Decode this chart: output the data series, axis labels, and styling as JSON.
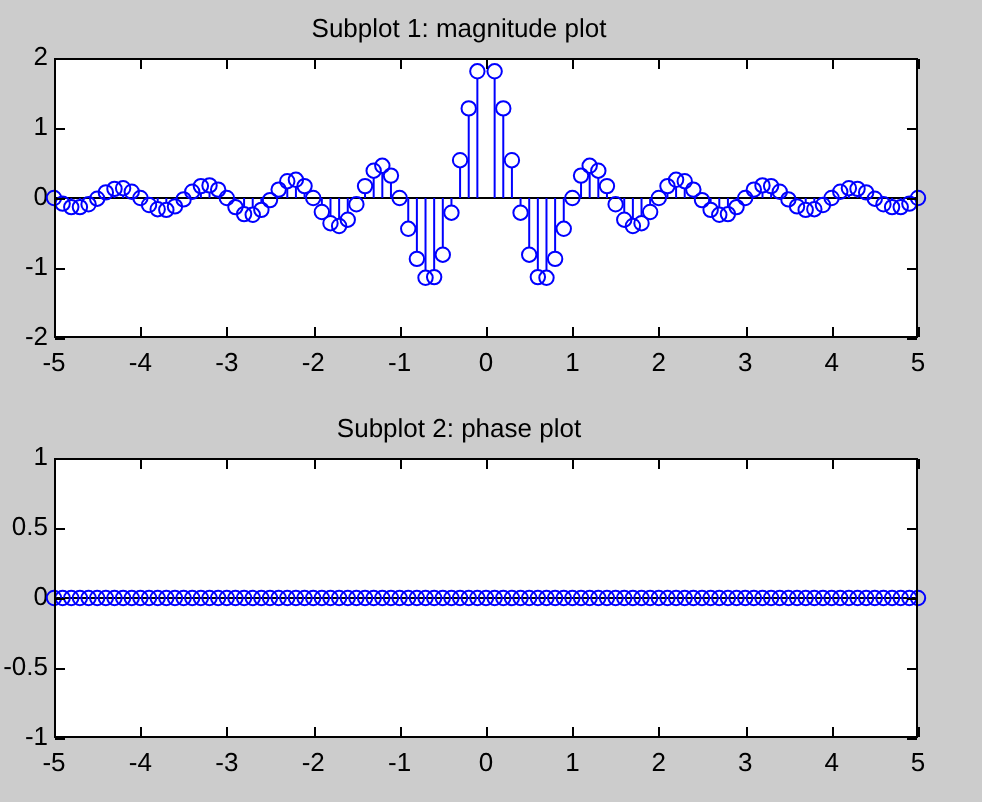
{
  "chart_data": [
    {
      "type": "lollipop",
      "title": "Subplot 1: magnitude plot",
      "color": "#0000ff",
      "marker": "circle",
      "x": [
        -5,
        -4.9,
        -4.8,
        -4.7,
        -4.6,
        -4.5,
        -4.4,
        -4.3,
        -4.2,
        -4.1,
        -4,
        -3.9,
        -3.8,
        -3.7,
        -3.6,
        -3.5,
        -3.4,
        -3.3,
        -3.2,
        -3.1,
        -3,
        -2.9,
        -2.8,
        -2.7,
        -2.6,
        -2.5,
        -2.4,
        -2.3,
        -2.2,
        -2.1,
        -2,
        -1.9,
        -1.8,
        -1.7,
        -1.6,
        -1.5,
        -1.4,
        -1.3,
        -1.2,
        -1.1,
        -1,
        -0.9,
        -0.8,
        -0.7,
        -0.6,
        -0.5,
        -0.4,
        -0.3,
        -0.2,
        -0.1,
        0,
        0.1,
        0.2,
        0.3,
        0.4,
        0.5,
        0.6,
        0.7,
        0.8,
        0.9,
        1,
        1.1,
        1.2,
        1.3,
        1.4,
        1.5,
        1.6,
        1.7,
        1.8,
        1.9,
        2,
        2.1,
        2.2,
        2.3,
        2.4,
        2.5,
        2.6,
        2.7,
        2.8,
        2.9,
        3,
        3.1,
        3.2,
        3.3,
        3.4,
        3.5,
        3.6,
        3.7,
        3.8,
        3.9,
        4,
        4.1,
        4.2,
        4.3,
        4.4,
        4.5,
        4.6,
        4.7,
        4.8,
        4.9,
        5
      ],
      "values": [
        0,
        -0.08,
        -0.13,
        -0.13,
        -0.09,
        -0.01,
        0.08,
        0.13,
        0.14,
        0.09,
        0,
        -0.1,
        -0.16,
        -0.17,
        -0.12,
        -0.02,
        0.09,
        0.17,
        0.18,
        0.12,
        0,
        -0.13,
        -0.23,
        -0.24,
        -0.17,
        -0.03,
        0.12,
        0.24,
        0.26,
        0.17,
        0,
        -0.2,
        -0.36,
        -0.4,
        -0.31,
        -0.09,
        0.17,
        0.39,
        0.46,
        0.32,
        0,
        -0.44,
        -0.87,
        -1.14,
        -1.13,
        -0.81,
        -0.21,
        0.54,
        1.28,
        1.81,
        null,
        1.81,
        1.28,
        0.54,
        -0.21,
        -0.81,
        -1.13,
        -1.14,
        -0.87,
        -0.44,
        0,
        0.32,
        0.46,
        0.39,
        0.17,
        -0.09,
        -0.31,
        -0.4,
        -0.36,
        -0.2,
        0,
        0.17,
        0.26,
        0.24,
        0.12,
        -0.03,
        -0.17,
        -0.24,
        -0.23,
        -0.13,
        0,
        0.12,
        0.18,
        0.17,
        0.09,
        -0.02,
        -0.12,
        -0.17,
        -0.16,
        -0.1,
        0,
        0.09,
        0.14,
        0.13,
        0.08,
        -0.01,
        -0.09,
        -0.13,
        -0.13,
        -0.08,
        0
      ],
      "xlim": [
        -5,
        5
      ],
      "xticks": [
        -5,
        -4,
        -3,
        -2,
        -1,
        0,
        1,
        2,
        3,
        4,
        5
      ],
      "ylim": [
        -2,
        2
      ],
      "yticks": [
        -2,
        -1,
        0,
        1,
        2
      ],
      "ref_lines": [
        {
          "axis": "y",
          "value": 0,
          "color": "#000000"
        }
      ]
    },
    {
      "type": "lollipop",
      "title": "Subplot 2: phase plot",
      "color": "#0000ff",
      "marker": "circle",
      "x": [
        -5,
        -4.9,
        -4.8,
        -4.7,
        -4.6,
        -4.5,
        -4.4,
        -4.3,
        -4.2,
        -4.1,
        -4,
        -3.9,
        -3.8,
        -3.7,
        -3.6,
        -3.5,
        -3.4,
        -3.3,
        -3.2,
        -3.1,
        -3,
        -2.9,
        -2.8,
        -2.7,
        -2.6,
        -2.5,
        -2.4,
        -2.3,
        -2.2,
        -2.1,
        -2,
        -1.9,
        -1.8,
        -1.7,
        -1.6,
        -1.5,
        -1.4,
        -1.3,
        -1.2,
        -1.1,
        -1,
        -0.9,
        -0.8,
        -0.7,
        -0.6,
        -0.5,
        -0.4,
        -0.3,
        -0.2,
        -0.1,
        0,
        0.1,
        0.2,
        0.3,
        0.4,
        0.5,
        0.6,
        0.7,
        0.8,
        0.9,
        1,
        1.1,
        1.2,
        1.3,
        1.4,
        1.5,
        1.6,
        1.7,
        1.8,
        1.9,
        2,
        2.1,
        2.2,
        2.3,
        2.4,
        2.5,
        2.6,
        2.7,
        2.8,
        2.9,
        3,
        3.1,
        3.2,
        3.3,
        3.4,
        3.5,
        3.6,
        3.7,
        3.8,
        3.9,
        4,
        4.1,
        4.2,
        4.3,
        4.4,
        4.5,
        4.6,
        4.7,
        4.8,
        4.9,
        5
      ],
      "values": [
        0,
        0,
        0,
        0,
        0,
        0,
        0,
        0,
        0,
        0,
        0,
        0,
        0,
        0,
        0,
        0,
        0,
        0,
        0,
        0,
        0,
        0,
        0,
        0,
        0,
        0,
        0,
        0,
        0,
        0,
        0,
        0,
        0,
        0,
        0,
        0,
        0,
        0,
        0,
        0,
        0,
        0,
        0,
        0,
        0,
        0,
        0,
        0,
        0,
        0,
        0,
        0,
        0,
        0,
        0,
        0,
        0,
        0,
        0,
        0,
        0,
        0,
        0,
        0,
        0,
        0,
        0,
        0,
        0,
        0,
        0,
        0,
        0,
        0,
        0,
        0,
        0,
        0,
        0,
        0,
        0,
        0,
        0,
        0,
        0,
        0,
        0,
        0,
        0,
        0,
        0,
        0,
        0,
        0,
        0,
        0,
        0,
        0,
        0,
        0,
        0
      ],
      "xlim": [
        -5,
        5
      ],
      "xticks": [
        -5,
        -4,
        -3,
        -2,
        -1,
        0,
        1,
        2,
        3,
        4,
        5
      ],
      "ylim": [
        -1,
        1
      ],
      "yticks": [
        -1,
        -0.5,
        0,
        0.5,
        1
      ],
      "ref_lines": [
        {
          "axis": "y",
          "value": 0,
          "color": "#000000"
        }
      ]
    }
  ]
}
